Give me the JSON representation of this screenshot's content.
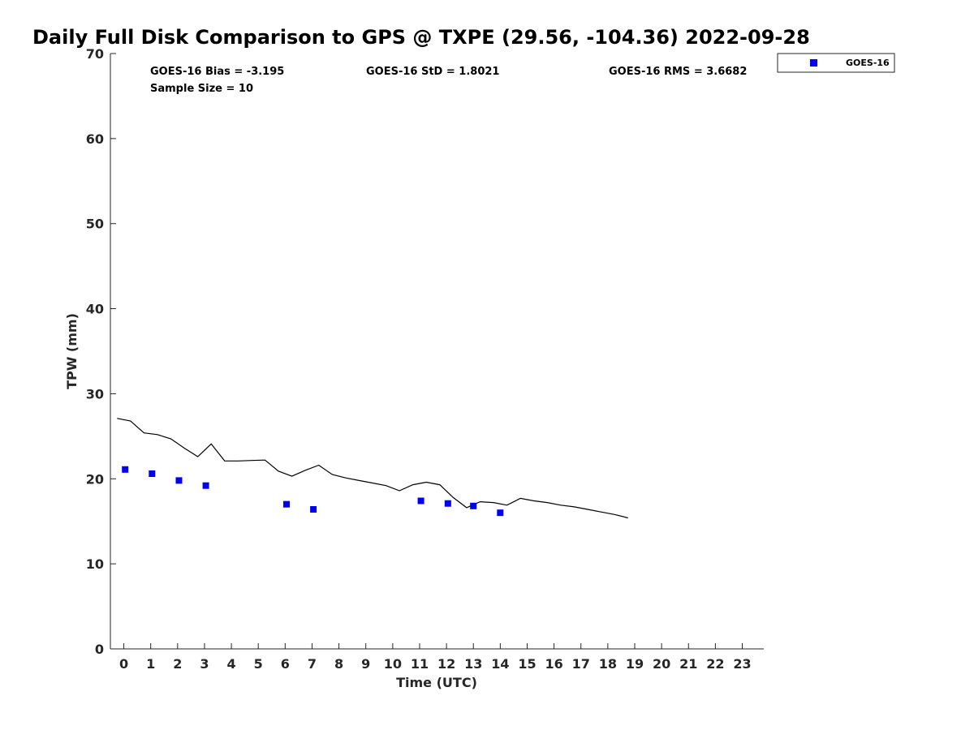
{
  "chart_data": {
    "type": "scatter",
    "title": "Daily Full Disk Comparison to GPS @ TXPE (29.56, -104.36) 2022-09-28",
    "xlabel": "Time (UTC)",
    "ylabel": "TPW (mm)",
    "xlim": [
      -0.5,
      23.8
    ],
    "ylim": [
      0,
      70
    ],
    "x_ticks": [
      0,
      1,
      2,
      3,
      4,
      5,
      6,
      7,
      8,
      9,
      10,
      11,
      12,
      13,
      14,
      15,
      16,
      17,
      18,
      19,
      20,
      21,
      22,
      23
    ],
    "y_ticks": [
      0,
      10,
      20,
      30,
      40,
      50,
      60,
      70
    ],
    "grid": false,
    "legend_position": "top-right outside",
    "stats": {
      "bias": "GOES-16 Bias = -3.195",
      "std": "GOES-16 StD = 1.8021",
      "rms": "GOES-16 RMS = 3.6682",
      "sample": "Sample Size = 10"
    },
    "series": [
      {
        "name": "GOES-16",
        "kind": "scatter",
        "color": "#0000ee",
        "marker": "square",
        "x": [
          0.05,
          1.05,
          2.05,
          3.05,
          6.05,
          7.05,
          11.05,
          12.05,
          13.0,
          14.0
        ],
        "y": [
          21.1,
          20.6,
          19.8,
          19.2,
          17.0,
          16.4,
          17.4,
          17.1,
          16.8,
          16.0
        ]
      },
      {
        "kind": "line",
        "color": "#000000",
        "x": [
          -0.25,
          0.25,
          0.75,
          1.25,
          1.75,
          2.25,
          2.75,
          3.25,
          3.75,
          4.25,
          4.75,
          5.25,
          5.75,
          6.25,
          6.75,
          7.25,
          7.75,
          8.25,
          8.75,
          9.25,
          9.75,
          10.25,
          10.75,
          11.25,
          11.75,
          12.25,
          12.75,
          13.25,
          13.75,
          14.25,
          14.75,
          15.25,
          15.75,
          16.25,
          16.75,
          17.25,
          17.75,
          18.25,
          18.75
        ],
        "y": [
          27.1,
          26.8,
          25.4,
          25.2,
          24.7,
          23.6,
          22.6,
          24.1,
          22.1,
          22.1,
          22.15,
          22.2,
          20.9,
          20.3,
          21.0,
          21.6,
          20.5,
          20.1,
          19.8,
          19.5,
          19.2,
          18.6,
          19.3,
          19.6,
          19.3,
          17.8,
          16.6,
          17.3,
          17.2,
          16.9,
          17.7,
          17.4,
          17.2,
          16.9,
          16.7,
          16.4,
          16.1,
          15.8,
          15.4
        ]
      }
    ]
  }
}
